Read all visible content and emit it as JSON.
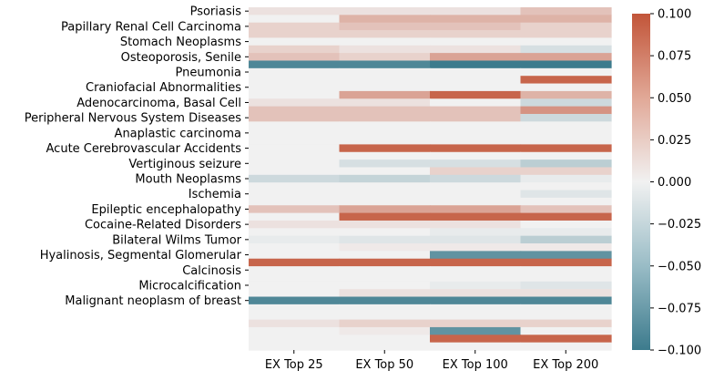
{
  "chart_data": {
    "type": "heatmap",
    "x_labels": [
      "EX Top 25",
      "EX Top 50",
      "EX Top 100",
      "EX Top 200"
    ],
    "y_tick_labels": [
      "Psoriasis",
      "Papillary Renal Cell Carcinoma",
      "Stomach Neoplasms",
      "Osteoporosis, Senile",
      "Pneumonia",
      "Craniofacial Abnormalities",
      "Adenocarcinoma, Basal Cell",
      "Peripheral Nervous System Diseases",
      "Anaplastic carcinoma",
      "Acute Cerebrovascular Accidents",
      "Vertiginous seizure",
      "Mouth Neoplasms",
      "Ischemia",
      "Epileptic encephalopathy",
      "Cocaine-Related Disorders",
      "Bilateral Wilms Tumor",
      "Hyalinosis, Segmental Glomerular",
      "Calcinosis",
      "Microcalcification",
      "Malignant neoplasm of breast"
    ],
    "tick_every": 2,
    "values": [
      [
        0.01,
        0.01,
        0.01,
        0.03
      ],
      [
        0.0,
        0.04,
        0.04,
        0.04
      ],
      [
        0.02,
        0.03,
        0.03,
        0.02
      ],
      [
        0.02,
        0.02,
        0.02,
        0.02
      ],
      [
        0.0,
        0.0,
        0.0,
        0.0
      ],
      [
        0.02,
        0.01,
        0.01,
        -0.015
      ],
      [
        0.03,
        0.02,
        0.05,
        0.05
      ],
      [
        -0.09,
        -0.09,
        -0.1,
        -0.1
      ],
      [
        0.0,
        0.0,
        0.0,
        0.0
      ],
      [
        0.0,
        0.0,
        0.0,
        0.09
      ],
      [
        0.0,
        0.0,
        0.0,
        0.0
      ],
      [
        0.0,
        0.05,
        0.09,
        0.04
      ],
      [
        0.01,
        0.01,
        0.0,
        -0.02
      ],
      [
        0.03,
        0.03,
        0.03,
        0.06
      ],
      [
        0.03,
        0.03,
        0.03,
        -0.02
      ],
      [
        0.0,
        0.0,
        0.0,
        0.0
      ],
      [
        0.0,
        0.0,
        0.0,
        0.0
      ],
      [
        0.0,
        0.0,
        0.0,
        0.0
      ],
      [
        0.0,
        0.09,
        0.09,
        0.09
      ],
      [
        0.0,
        0.0,
        0.0,
        0.0
      ],
      [
        0.0,
        -0.015,
        -0.015,
        -0.03
      ],
      [
        0.0,
        0.0,
        0.02,
        0.02
      ],
      [
        -0.02,
        -0.025,
        -0.02,
        -0.005
      ],
      [
        0.0,
        0.0,
        0.0,
        0.0
      ],
      [
        0.0,
        0.0,
        0.0,
        -0.01
      ],
      [
        0.0,
        0.0,
        0.0,
        0.0
      ],
      [
        0.03,
        0.05,
        0.05,
        0.03
      ],
      [
        0.0,
        0.09,
        0.09,
        0.09
      ],
      [
        0.01,
        0.01,
        0.01,
        0.0
      ],
      [
        0.0,
        0.0,
        -0.005,
        -0.005
      ],
      [
        -0.005,
        -0.01,
        -0.01,
        -0.03
      ],
      [
        0.0,
        0.005,
        0.005,
        0.005
      ],
      [
        0.0,
        0.0,
        -0.08,
        -0.08
      ],
      [
        0.09,
        0.09,
        0.09,
        0.09
      ],
      [
        0.0,
        0.0,
        0.0,
        0.0
      ],
      [
        0.0,
        0.0,
        0.0,
        0.0
      ],
      [
        0.0,
        0.0,
        -0.005,
        -0.01
      ],
      [
        0.0,
        0.01,
        0.01,
        0.01
      ],
      [
        -0.09,
        -0.09,
        -0.09,
        -0.09
      ],
      [
        0.0,
        0.0,
        0.0,
        0.0
      ],
      [
        0.0,
        0.0,
        0.0,
        0.0
      ],
      [
        0.01,
        0.02,
        0.02,
        0.02
      ],
      [
        0.0,
        0.005,
        -0.08,
        0.0
      ],
      [
        0.0,
        0.0,
        0.09,
        0.09
      ],
      [
        0.0,
        0.0,
        0.0,
        0.0
      ]
    ],
    "colorbar": {
      "ticks": [
        "0.100",
        "0.075",
        "0.050",
        "0.025",
        "0.000",
        "−0.025",
        "−0.050",
        "−0.075",
        "−0.100"
      ],
      "range": [
        -0.1,
        0.1
      ]
    },
    "colors": {
      "negative": "#3d7b8d",
      "neutral": "#f1f1f1",
      "positive": "#c25539"
    },
    "grid": false
  }
}
